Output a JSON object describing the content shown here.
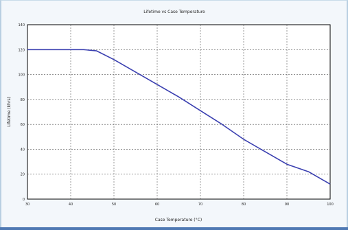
{
  "chart_data": {
    "type": "line",
    "title": "Lifetime vs Case Temperature",
    "xlabel": "Case Temperature (°C)",
    "ylabel": "Lifetime (khrs)",
    "xlim": [
      30,
      100
    ],
    "ylim": [
      0,
      140
    ],
    "x_ticks": [
      "30",
      "40",
      "50",
      "60",
      "70",
      "80",
      "90",
      "100"
    ],
    "y_ticks": [
      "0",
      "20",
      "40",
      "60",
      "80",
      "100",
      "120",
      "140"
    ],
    "grid": true,
    "series": [
      {
        "color": "#3a3fb0",
        "x": [
          30,
          35,
          40,
          43,
          46,
          50,
          55,
          60,
          65,
          70,
          75,
          80,
          85,
          90,
          95,
          100
        ],
        "y": [
          120,
          120,
          120,
          120,
          119,
          112,
          102,
          92,
          82,
          71,
          60,
          48,
          38,
          28,
          22,
          12
        ]
      }
    ]
  }
}
